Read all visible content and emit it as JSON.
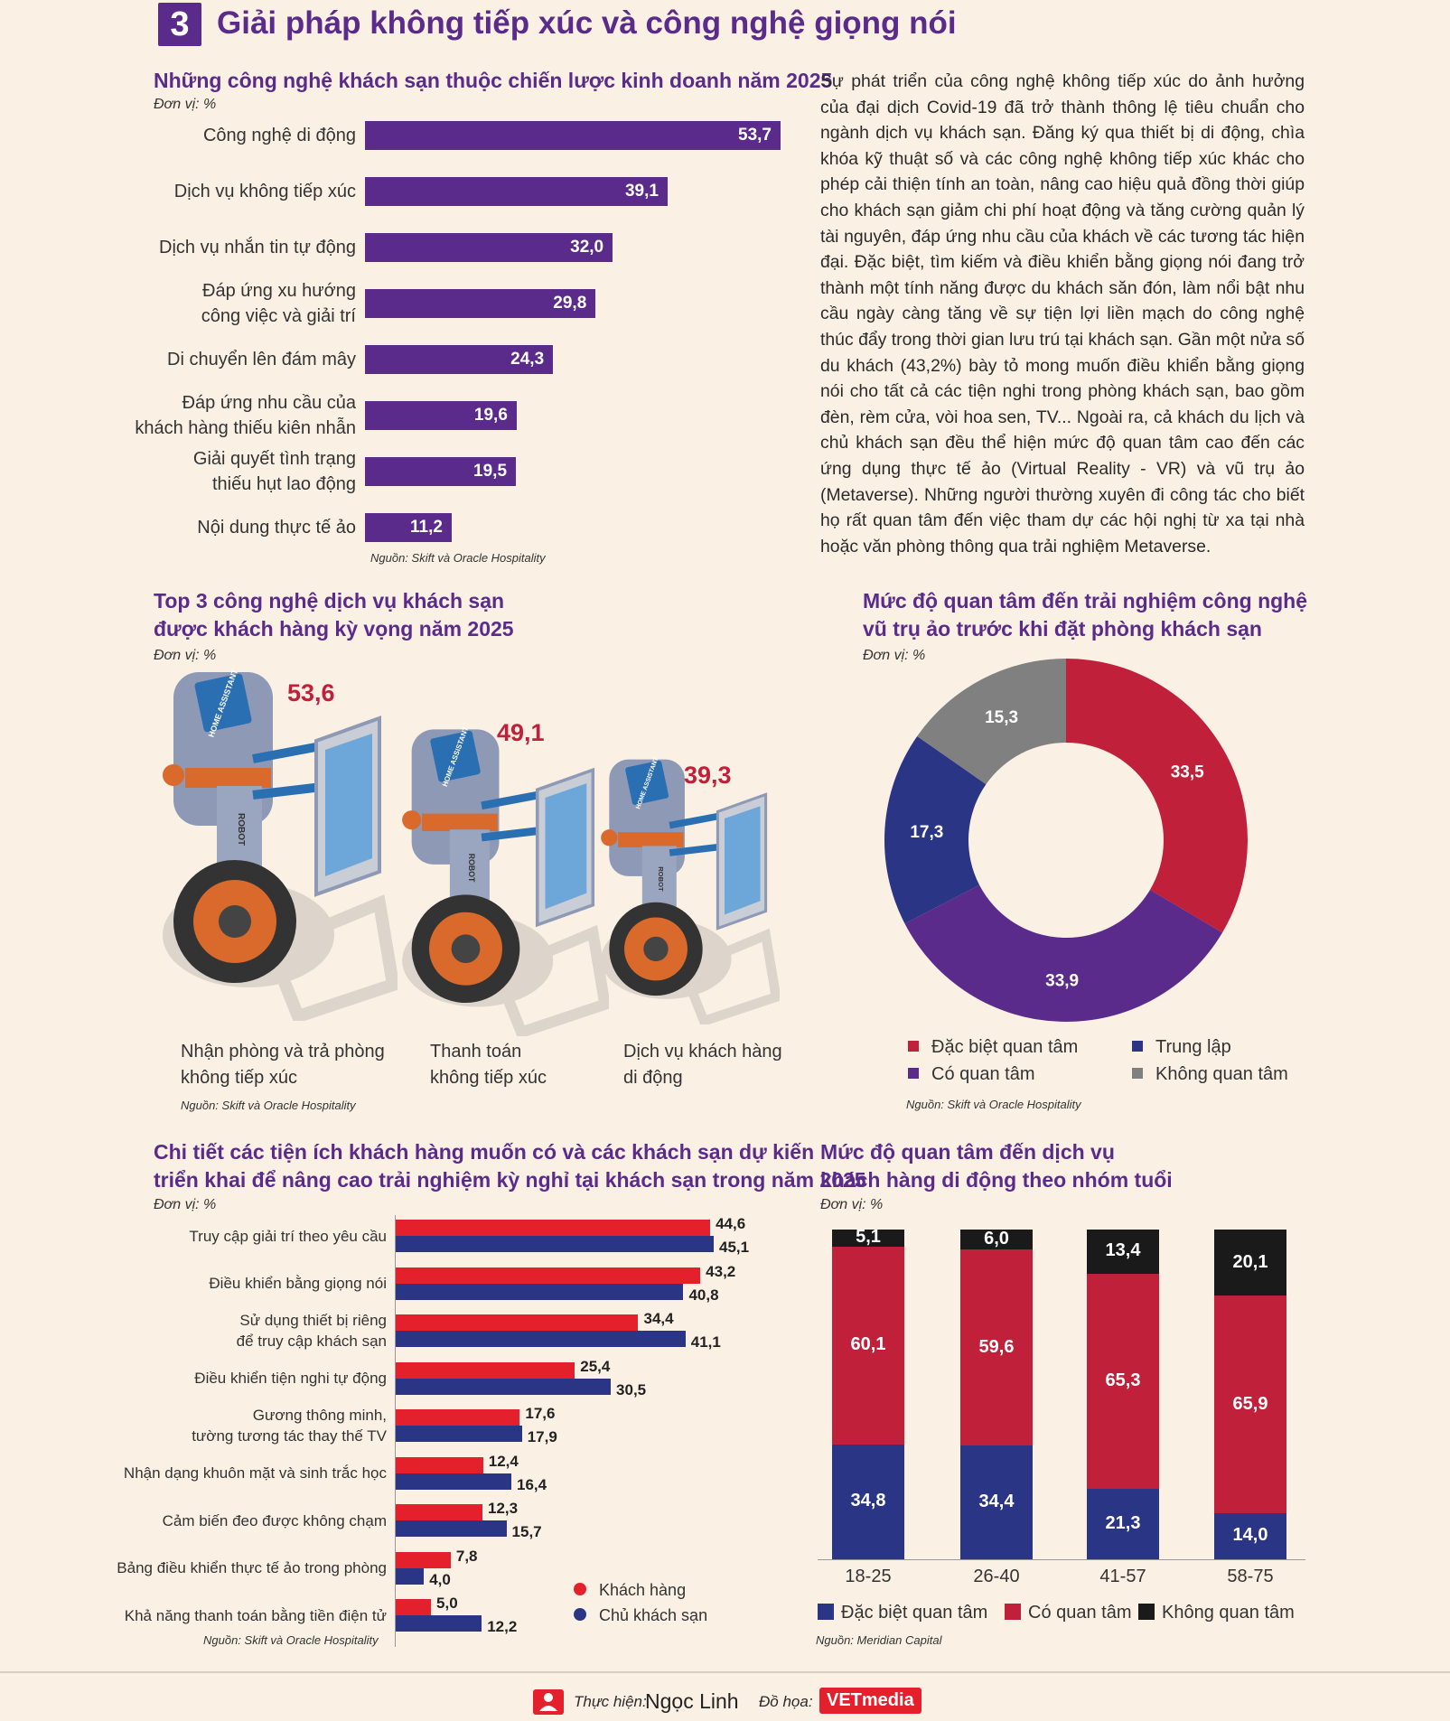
{
  "section": {
    "number": "3",
    "title": "Giải pháp không tiếp xúc và công nghệ giọng nói"
  },
  "paragraph": "Sự phát triển của công nghệ không tiếp xúc do ảnh hưởng của đại dịch Covid-19 đã trở thành thông lệ tiêu chuẩn cho ngành dịch vụ khách sạn. Đăng ký qua thiết bị di động, chìa khóa kỹ thuật số và các công nghệ không tiếp xúc khác cho phép cải thiện tính an toàn, nâng cao hiệu quả đồng thời giúp cho khách sạn giảm chi phí hoạt động và tăng cường quản lý tài nguyên, đáp ứng nhu cầu của khách về các tương tác hiện đại. Đặc biệt, tìm kiếm và điều khiển bằng giọng nói đang trở thành một tính năng được du khách săn đón, làm nổi bật nhu cầu ngày càng tăng về sự tiện lợi liền mạch do công nghệ thúc đẩy trong thời gian lưu trú tại khách sạn. Gần một nửa số du khách (43,2%) bày tỏ mong muốn điều khiển bằng giọng nói cho tất cả các tiện nghi trong phòng khách sạn, bao gồm đèn, rèm cửa, vòi hoa sen, TV... Ngoài ra, cả khách du lịch và chủ khách sạn đều thể hiện mức độ quan tâm cao đến các ứng dụng thực tế ảo (Virtual Reality - VR) và vũ trụ ảo (Metaverse). Những người thường xuyên đi công tác cho biết họ rất quan tâm đến việc tham dự các hội nghị từ xa tại nhà hoặc văn phòng thông qua trải nghiệm Metaverse.",
  "footer": {
    "made_by_label": "Thực hiện:",
    "made_by": "Ngọc Linh",
    "graphics_label": "Đồ họa:",
    "brand": "VETmedia"
  },
  "colors": {
    "purple": "#5b2b8c",
    "red": "#c0203a",
    "navy": "#2a3586",
    "gray": "#808080",
    "black": "#1a1a1a",
    "bright_red": "#e4202c"
  },
  "chart_data": [
    {
      "type": "bar",
      "title": "Những công nghệ khách sạn thuộc chiến lược kinh doanh năm 2025",
      "unit": "Đơn vị: %",
      "categories": [
        "Công nghệ di động",
        "Dịch vụ không tiếp xúc",
        "Dịch vụ nhắn tin tự động",
        "Đáp ứng xu hướng\ncông việc và giải trí",
        "Di chuyển lên đám mây",
        "Đáp ứng nhu cầu của\nkhách hàng thiếu kiên nhẫn",
        "Giải quyết tình trạng\nthiếu hụt lao động",
        "Nội dung thực tế ảo"
      ],
      "values": [
        53.7,
        39.1,
        32.0,
        29.8,
        24.3,
        19.6,
        19.5,
        11.2
      ],
      "value_labels": [
        "53,7",
        "39,1",
        "32,0",
        "29,8",
        "24,3",
        "19,6",
        "19,5",
        "11,2"
      ],
      "source": "Nguồn: Skift và Oracle Hospitality"
    },
    {
      "type": "bar",
      "title": "Top 3 công nghệ dịch vụ khách sạn\nđược khách hàng kỳ vọng năm 2025",
      "unit": "Đơn vị: %",
      "categories": [
        "Nhận phòng và trả phòng\nkhông tiếp xúc",
        "Thanh toán\nkhông tiếp xúc",
        "Dịch vụ khách hàng\ndi động"
      ],
      "values": [
        53.6,
        49.1,
        39.3
      ],
      "value_labels": [
        "53,6",
        "49,1",
        "39,3"
      ],
      "robot_screen_text": "HOME ASSISTANT",
      "robot_body_text": "ROBOT",
      "source": "Nguồn: Skift và Oracle Hospitality"
    },
    {
      "type": "pie",
      "title": "Mức độ quan tâm đến trải nghiệm công nghệ\nvũ trụ ảo trước khi đặt phòng khách sạn",
      "unit": "Đơn vị: %",
      "slices": [
        {
          "name": "Đặc biệt quan tâm",
          "value": 33.5,
          "label": "33,5",
          "color": "#c0203a"
        },
        {
          "name": "Có quan tâm",
          "value": 33.9,
          "label": "33,9",
          "color": "#5b2b8c"
        },
        {
          "name": "Trung lập",
          "value": 17.3,
          "label": "17,3",
          "color": "#2a3586"
        },
        {
          "name": "Không quan tâm",
          "value": 15.3,
          "label": "15,3",
          "color": "#808080"
        }
      ],
      "legend": "bottom",
      "source": "Nguồn: Skift và Oracle Hospitality"
    },
    {
      "type": "bar",
      "title": "Chi tiết các tiện ích khách hàng muốn có và các khách sạn dự kiến\ntriển khai để nâng cao trải nghiệm kỳ nghỉ tại khách sạn trong năm 2025",
      "unit": "Đơn vị: %",
      "categories": [
        "Truy cập giải trí theo yêu cầu",
        "Điều khiển bằng giọng nói",
        "Sử dụng thiết bị riêng\nđể truy cập khách sạn",
        "Điều khiển tiện nghi tự động",
        "Gương thông minh,\ntường tương tác thay thế TV",
        "Nhận dạng khuôn mặt và sinh trắc học",
        "Cảm biến đeo được không chạm",
        "Bảng điều khiển thực tế ảo trong phòng",
        "Khả năng thanh toán bằng tiền điện tử"
      ],
      "series": [
        {
          "name": "Khách hàng",
          "color": "#e4202c",
          "values": [
            44.6,
            43.2,
            34.4,
            25.4,
            17.6,
            12.4,
            12.3,
            7.8,
            5.0
          ],
          "labels": [
            "44,6",
            "43,2",
            "34,4",
            "25,4",
            "17,6",
            "12,4",
            "12,3",
            "7,8",
            "5,0"
          ]
        },
        {
          "name": "Chủ khách sạn",
          "color": "#2a3586",
          "values": [
            45.1,
            40.8,
            41.1,
            30.5,
            17.9,
            16.4,
            15.7,
            4.0,
            12.2
          ],
          "labels": [
            "45,1",
            "40,8",
            "41,1",
            "30,5",
            "17,9",
            "16,4",
            "15,7",
            "4,0",
            "12,2"
          ]
        }
      ],
      "legend": "bottom-right",
      "source": "Nguồn: Skift và Oracle Hospitality"
    },
    {
      "type": "bar",
      "stacked": true,
      "title": "Mức độ quan tâm đến dịch vụ\nkhách hàng di động theo nhóm tuổi",
      "unit": "Đơn vị: %",
      "categories": [
        "18-25",
        "26-40",
        "41-57",
        "58-75"
      ],
      "series": [
        {
          "name": "Đặc biệt quan tâm",
          "color": "#2a3586",
          "values": [
            34.8,
            34.4,
            21.3,
            14.0
          ],
          "labels": [
            "34,8",
            "34,4",
            "21,3",
            "14,0"
          ]
        },
        {
          "name": "Có quan tâm",
          "color": "#c0203a",
          "values": [
            60.1,
            59.6,
            65.3,
            65.9
          ],
          "labels": [
            "60,1",
            "59,6",
            "65,3",
            "65,9"
          ]
        },
        {
          "name": "Không quan tâm",
          "color": "#1a1a1a",
          "values": [
            5.1,
            6.0,
            13.4,
            20.1
          ],
          "labels": [
            "5,1",
            "6,0",
            "13,4",
            "20,1"
          ]
        }
      ],
      "legend": "bottom",
      "source": "Nguồn: Meridian Capital"
    }
  ]
}
